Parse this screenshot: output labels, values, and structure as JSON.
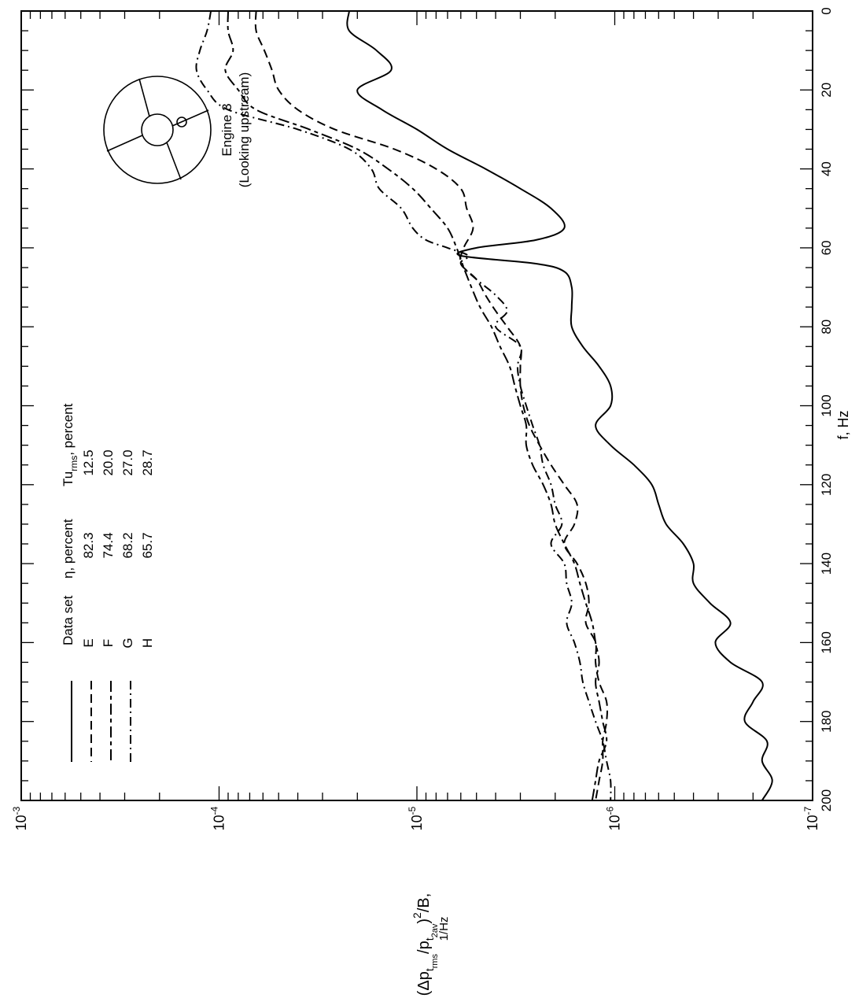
{
  "chart_data": {
    "type": "line",
    "orientation": "rotated-90-clockwise",
    "x_axis": {
      "label": "f, Hz",
      "range": [
        0,
        200
      ],
      "ticks": [
        "0",
        "20",
        "40",
        "60",
        "80",
        "100",
        "120",
        "140",
        "160",
        "180",
        "200"
      ]
    },
    "y_axis": {
      "scale": "log",
      "range": [
        1e-07,
        0.001
      ],
      "tick_labels": [
        {
          "base": "10",
          "exp": "-3"
        },
        {
          "base": "10",
          "exp": "-4"
        },
        {
          "base": "10",
          "exp": "-5"
        },
        {
          "base": "10",
          "exp": "-6"
        },
        {
          "base": "10",
          "exp": "-7"
        }
      ],
      "label_parts": {
        "open": "(",
        "delta_p": "Δp",
        "sub_t": "t",
        "sub_rms": "rms",
        "slash": "/",
        "p": "p",
        "sub_t2": "t",
        "sub_2av": "2av",
        "close": ")",
        "power": "2",
        "per_b": "/B,",
        "units": "1/Hz"
      }
    },
    "legend": {
      "headers": [
        "Data set",
        "η, percent",
        "Tu",
        "rms",
        ", percent"
      ],
      "rows": [
        {
          "set": "E",
          "eta": "82.3",
          "tu": "12.5",
          "dash": "solid"
        },
        {
          "set": "F",
          "eta": "74.4",
          "tu": "20.0",
          "dash": "long-dash"
        },
        {
          "set": "G",
          "eta": "68.2",
          "tu": "27.0",
          "dash": "long-short-dash"
        },
        {
          "set": "H",
          "eta": "65.7",
          "tu": "28.7",
          "dash": "dash-dot"
        }
      ]
    },
    "inset": {
      "line1": "Engine 3",
      "line2": "(Looking upstream)"
    },
    "series": [
      {
        "name": "E",
        "dash": "solid",
        "points": [
          [
            0,
            2.2e-05
          ],
          [
            5,
            2.2e-05
          ],
          [
            10,
            1.6e-05
          ],
          [
            15,
            1.35e-05
          ],
          [
            20,
            2e-05
          ],
          [
            25,
            1.5e-05
          ],
          [
            30,
            1e-05
          ],
          [
            35,
            7e-06
          ],
          [
            40,
            4.5e-06
          ],
          [
            45,
            3e-06
          ],
          [
            50,
            2.1e-06
          ],
          [
            55,
            1.8e-06
          ],
          [
            58,
            2.5e-06
          ],
          [
            60,
            5e-06
          ],
          [
            62,
            6e-06
          ],
          [
            64,
            2.5e-06
          ],
          [
            66,
            1.8e-06
          ],
          [
            70,
            1.65e-06
          ],
          [
            75,
            1.65e-06
          ],
          [
            80,
            1.65e-06
          ],
          [
            85,
            1.45e-06
          ],
          [
            90,
            1.2e-06
          ],
          [
            95,
            1.05e-06
          ],
          [
            100,
            1.05e-06
          ],
          [
            105,
            1.25e-06
          ],
          [
            110,
            1.05e-06
          ],
          [
            115,
            8e-07
          ],
          [
            120,
            6.5e-07
          ],
          [
            125,
            6e-07
          ],
          [
            130,
            5.5e-07
          ],
          [
            135,
            4.5e-07
          ],
          [
            140,
            4e-07
          ],
          [
            145,
            4e-07
          ],
          [
            150,
            3.3e-07
          ],
          [
            155,
            2.6e-07
          ],
          [
            160,
            3.1e-07
          ],
          [
            165,
            2.6e-07
          ],
          [
            170,
            1.8e-07
          ],
          [
            175,
            2e-07
          ],
          [
            180,
            2.2e-07
          ],
          [
            185,
            1.7e-07
          ],
          [
            190,
            1.8e-07
          ],
          [
            195,
            1.6e-07
          ],
          [
            200,
            1.8e-07
          ]
        ]
      },
      {
        "name": "F",
        "dash": "long-dash",
        "points": [
          [
            0,
            6.5e-05
          ],
          [
            5,
            6.5e-05
          ],
          [
            10,
            5.9e-05
          ],
          [
            15,
            5.4e-05
          ],
          [
            20,
            5e-05
          ],
          [
            25,
            4e-05
          ],
          [
            30,
            2.6e-05
          ],
          [
            35,
            1.3e-05
          ],
          [
            40,
            8e-06
          ],
          [
            45,
            6e-06
          ],
          [
            50,
            5.6e-06
          ],
          [
            55,
            5.2e-06
          ],
          [
            60,
            5.8e-06
          ],
          [
            64,
            6e-06
          ],
          [
            68,
            5e-06
          ],
          [
            72,
            4.5e-06
          ],
          [
            76,
            4e-06
          ],
          [
            80,
            3.5e-06
          ],
          [
            85,
            3e-06
          ],
          [
            90,
            3e-06
          ],
          [
            95,
            3e-06
          ],
          [
            100,
            2.9e-06
          ],
          [
            105,
            2.7e-06
          ],
          [
            110,
            2.4e-06
          ],
          [
            115,
            2.1e-06
          ],
          [
            120,
            1.8e-06
          ],
          [
            125,
            1.55e-06
          ],
          [
            130,
            1.6e-06
          ],
          [
            135,
            1.8e-06
          ],
          [
            140,
            1.55e-06
          ],
          [
            145,
            1.4e-06
          ],
          [
            150,
            1.35e-06
          ],
          [
            155,
            1.4e-06
          ],
          [
            160,
            1.25e-06
          ],
          [
            165,
            1.25e-06
          ],
          [
            170,
            1.2e-06
          ],
          [
            175,
            1.1e-06
          ],
          [
            180,
            1.1e-06
          ],
          [
            185,
            1.15e-06
          ],
          [
            190,
            1.15e-06
          ],
          [
            195,
            1.2e-06
          ],
          [
            200,
            1.25e-06
          ]
        ]
      },
      {
        "name": "G",
        "dash": "long-short-dash",
        "points": [
          [
            0,
            9e-05
          ],
          [
            5,
            9e-05
          ],
          [
            10,
            8.5e-05
          ],
          [
            15,
            9.3e-05
          ],
          [
            20,
            8e-05
          ],
          [
            25,
            6.5e-05
          ],
          [
            30,
            3.5e-05
          ],
          [
            35,
            2e-05
          ],
          [
            40,
            1.4e-05
          ],
          [
            45,
            1.05e-05
          ],
          [
            50,
            8.5e-06
          ],
          [
            55,
            7e-06
          ],
          [
            60,
            6.3e-06
          ],
          [
            65,
            5.8e-06
          ],
          [
            70,
            5.3e-06
          ],
          [
            75,
            4.8e-06
          ],
          [
            80,
            4.2e-06
          ],
          [
            85,
            3.8e-06
          ],
          [
            90,
            3.4e-06
          ],
          [
            95,
            3.2e-06
          ],
          [
            100,
            3e-06
          ],
          [
            105,
            2.8e-06
          ],
          [
            110,
            2.8e-06
          ],
          [
            115,
            2.6e-06
          ],
          [
            120,
            2.3e-06
          ],
          [
            125,
            2.1e-06
          ],
          [
            130,
            2e-06
          ],
          [
            135,
            1.8e-06
          ],
          [
            140,
            1.6e-06
          ],
          [
            145,
            1.5e-06
          ],
          [
            150,
            1.4e-06
          ],
          [
            155,
            1.3e-06
          ],
          [
            160,
            1.25e-06
          ],
          [
            165,
            1.2e-06
          ],
          [
            170,
            1.25e-06
          ],
          [
            175,
            1.2e-06
          ],
          [
            180,
            1.15e-06
          ],
          [
            185,
            1.1e-06
          ],
          [
            190,
            1.2e-06
          ],
          [
            195,
            1.25e-06
          ],
          [
            200,
            1.3e-06
          ]
        ]
      },
      {
        "name": "H",
        "dash": "dash-dot",
        "points": [
          [
            0,
            0.00011
          ],
          [
            5,
            0.000115
          ],
          [
            10,
            0.000125
          ],
          [
            15,
            0.00013
          ],
          [
            20,
            0.000115
          ],
          [
            25,
            9e-05
          ],
          [
            30,
            4e-05
          ],
          [
            35,
            2.2e-05
          ],
          [
            40,
            1.7e-05
          ],
          [
            45,
            1.55e-05
          ],
          [
            50,
            1.2e-05
          ],
          [
            55,
            1.05e-05
          ],
          [
            58,
            9e-06
          ],
          [
            60,
            7e-06
          ],
          [
            62,
            5.5e-06
          ],
          [
            64,
            6e-06
          ],
          [
            68,
            5e-06
          ],
          [
            72,
            4e-06
          ],
          [
            76,
            3.5e-06
          ],
          [
            80,
            4e-06
          ],
          [
            85,
            3e-06
          ],
          [
            90,
            3.1e-06
          ],
          [
            95,
            3e-06
          ],
          [
            100,
            2.8e-06
          ],
          [
            105,
            2.6e-06
          ],
          [
            110,
            2.4e-06
          ],
          [
            115,
            2.3e-06
          ],
          [
            120,
            2.1e-06
          ],
          [
            125,
            2e-06
          ],
          [
            130,
            1.85e-06
          ],
          [
            135,
            2.1e-06
          ],
          [
            140,
            1.8e-06
          ],
          [
            145,
            1.75e-06
          ],
          [
            150,
            1.65e-06
          ],
          [
            155,
            1.75e-06
          ],
          [
            160,
            1.6e-06
          ],
          [
            165,
            1.5e-06
          ],
          [
            170,
            1.45e-06
          ],
          [
            175,
            1.35e-06
          ],
          [
            180,
            1.25e-06
          ],
          [
            185,
            1.15e-06
          ],
          [
            190,
            1.1e-06
          ],
          [
            195,
            1.05e-06
          ],
          [
            200,
            1.05e-06
          ]
        ]
      }
    ]
  }
}
